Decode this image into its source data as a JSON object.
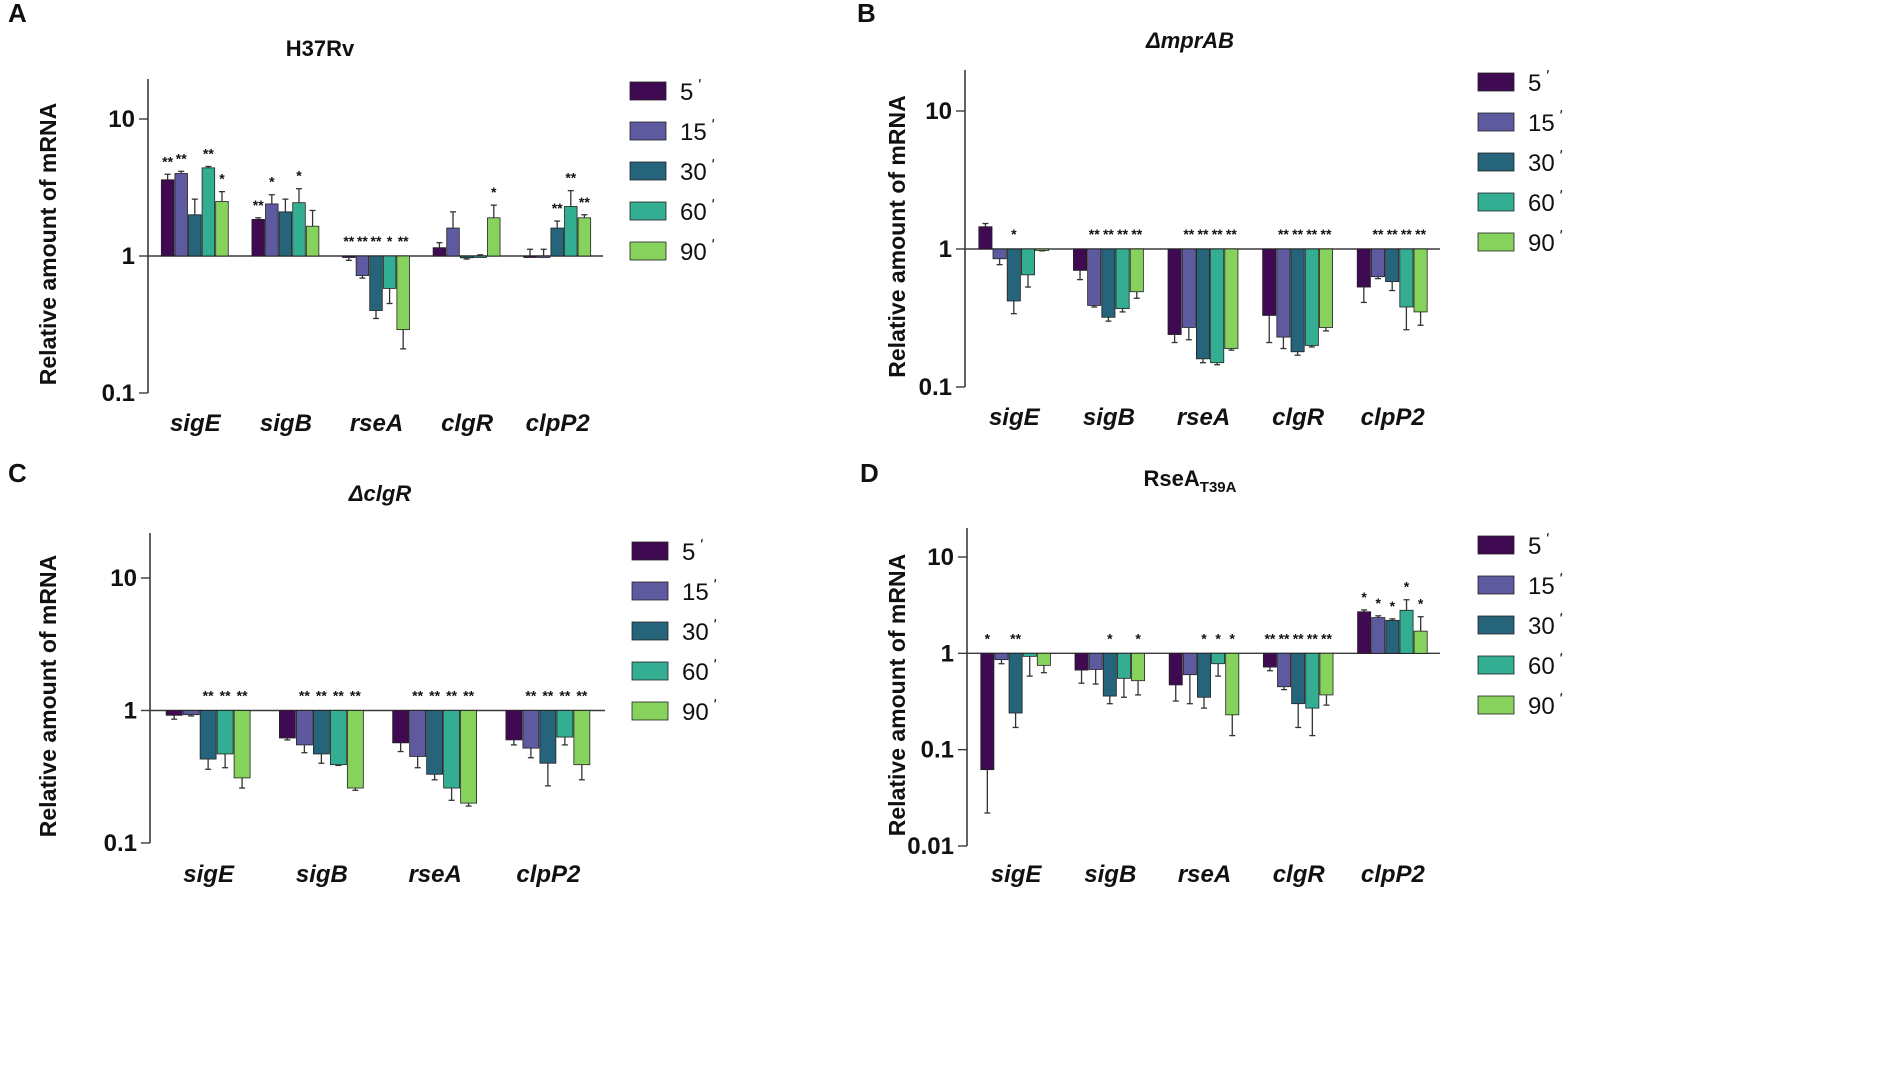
{
  "legend": {
    "items": [
      {
        "label": "5",
        "color": "#3f0a52"
      },
      {
        "label": "15",
        "color": "#5e5a9f"
      },
      {
        "label": "30",
        "color": "#25647a"
      },
      {
        "label": "60",
        "color": "#33ae92"
      },
      {
        "label": "90",
        "color": "#86d25d"
      }
    ],
    "prime": "ʹ"
  },
  "ylabel": "Relative amount of mRNA",
  "chart_data": [
    {
      "panel": "A",
      "type": "bar",
      "scale": "log",
      "title": "H37Rv",
      "title_style": "normal",
      "ylabel": "Relative amount of mRNA",
      "ylim": [
        0.1,
        20
      ],
      "yticks": [
        0.1,
        1,
        10
      ],
      "ytick_labels": [
        "0.1",
        "1",
        "10"
      ],
      "baseline": 1,
      "categories": [
        "sigE",
        "sigB",
        "rseA",
        "clgR",
        "clpP2"
      ],
      "series": [
        {
          "name": "5ʹ",
          "values": [
            3.6,
            1.85,
            0.98,
            1.15,
            1.0
          ],
          "errors": [
            0.35,
            0.05,
            0.05,
            0.1,
            0.12
          ],
          "sig": [
            "**",
            "**",
            "**",
            "",
            ""
          ]
        },
        {
          "name": "15ʹ",
          "values": [
            4.0,
            2.4,
            0.72,
            1.6,
            1.0
          ],
          "errors": [
            0.15,
            0.4,
            0.03,
            0.5,
            0.12
          ],
          "sig": [
            "**",
            "*",
            "**",
            "",
            ""
          ]
        },
        {
          "name": "30ʹ",
          "values": [
            2.0,
            2.1,
            0.4,
            0.97,
            1.6
          ],
          "errors": [
            0.6,
            0.5,
            0.05,
            0.02,
            0.2
          ],
          "sig": [
            "",
            "",
            "**",
            "",
            "**"
          ]
        },
        {
          "name": "60ʹ",
          "values": [
            4.4,
            2.45,
            0.58,
            1.0,
            2.3
          ],
          "errors": [
            0.1,
            0.65,
            0.13,
            0.02,
            0.7
          ],
          "sig": [
            "**",
            "*",
            "*",
            "",
            "**"
          ]
        },
        {
          "name": "90ʹ",
          "values": [
            2.5,
            1.65,
            0.29,
            1.9,
            1.9
          ],
          "errors": [
            0.45,
            0.5,
            0.08,
            0.45,
            0.1
          ],
          "sig": [
            "*",
            "",
            "**",
            "*",
            "**"
          ]
        }
      ]
    },
    {
      "panel": "B",
      "type": "bar",
      "scale": "log",
      "title": "ΔmprAB",
      "title_style": "italic",
      "ylabel": "Relative amount of mRNA",
      "ylim": [
        0.1,
        20
      ],
      "yticks": [
        0.1,
        1,
        10
      ],
      "ytick_labels": [
        "0.1",
        "1",
        "10"
      ],
      "baseline": 1,
      "categories": [
        "sigE",
        "sigB",
        "rseA",
        "clgR",
        "clpP2"
      ],
      "series": [
        {
          "name": "5ʹ",
          "values": [
            1.45,
            0.7,
            0.24,
            0.33,
            0.53
          ],
          "errors": [
            0.08,
            0.1,
            0.03,
            0.12,
            0.12
          ],
          "sig": [
            "",
            "",
            "",
            "",
            ""
          ]
        },
        {
          "name": "15ʹ",
          "values": [
            0.85,
            0.39,
            0.27,
            0.23,
            0.63
          ],
          "errors": [
            0.08,
            0.01,
            0.05,
            0.04,
            0.02
          ],
          "sig": [
            "",
            "**",
            "**",
            "**",
            "**"
          ]
        },
        {
          "name": "30ʹ",
          "values": [
            0.42,
            0.32,
            0.16,
            0.18,
            0.58
          ],
          "errors": [
            0.08,
            0.02,
            0.01,
            0.01,
            0.08
          ],
          "sig": [
            "*",
            "**",
            "**",
            "**",
            "**"
          ]
        },
        {
          "name": "60ʹ",
          "values": [
            0.65,
            0.37,
            0.15,
            0.2,
            0.38
          ],
          "errors": [
            0.12,
            0.02,
            0.005,
            0.005,
            0.12
          ],
          "sig": [
            "",
            "**",
            "**",
            "**",
            "**"
          ]
        },
        {
          "name": "90ʹ",
          "values": [
            0.98,
            0.49,
            0.19,
            0.27,
            0.35
          ],
          "errors": [
            0.01,
            0.05,
            0.005,
            0.015,
            0.07
          ],
          "sig": [
            "",
            "**",
            "**",
            "**",
            "**"
          ]
        }
      ]
    },
    {
      "panel": "C",
      "type": "bar",
      "scale": "log",
      "title": "ΔclgR",
      "title_style": "italic",
      "ylabel": "Relative amount of mRNA",
      "ylim": [
        0.1,
        20
      ],
      "yticks": [
        0.1,
        1,
        10
      ],
      "ytick_labels": [
        "0.1",
        "1",
        "10"
      ],
      "baseline": 1,
      "categories": [
        "sigE",
        "sigB",
        "rseA",
        "clpP2"
      ],
      "series": [
        {
          "name": "5ʹ",
          "values": [
            0.92,
            0.62,
            0.57,
            0.6
          ],
          "errors": [
            0.06,
            0.02,
            0.08,
            0.05
          ],
          "sig": [
            "",
            "",
            "",
            ""
          ]
        },
        {
          "name": "15ʹ",
          "values": [
            0.93,
            0.55,
            0.45,
            0.52
          ],
          "errors": [
            0.02,
            0.07,
            0.08,
            0.08
          ],
          "sig": [
            "",
            "**",
            "**",
            "**"
          ]
        },
        {
          "name": "30ʹ",
          "values": [
            0.43,
            0.47,
            0.33,
            0.4
          ],
          "errors": [
            0.07,
            0.07,
            0.03,
            0.13
          ],
          "sig": [
            "**",
            "**",
            "**",
            "**"
          ]
        },
        {
          "name": "60ʹ",
          "values": [
            0.47,
            0.39,
            0.26,
            0.63
          ],
          "errors": [
            0.1,
            0.005,
            0.05,
            0.08
          ],
          "sig": [
            "**",
            "**",
            "**",
            "**"
          ]
        },
        {
          "name": "90ʹ",
          "values": [
            0.31,
            0.26,
            0.2,
            0.39
          ],
          "errors": [
            0.05,
            0.01,
            0.01,
            0.09
          ],
          "sig": [
            "**",
            "**",
            "**",
            "**"
          ]
        }
      ]
    },
    {
      "panel": "D",
      "type": "bar",
      "scale": "log",
      "title": "RseA",
      "title_sub": "T39A",
      "title_style": "normal",
      "ylabel": "Relative amount of mRNA",
      "ylim": [
        0.01,
        20
      ],
      "yticks": [
        0.01,
        0.1,
        1,
        10
      ],
      "ytick_labels": [
        "0.01",
        "0.1",
        "1",
        "10"
      ],
      "baseline": 1,
      "categories": [
        "sigE",
        "sigB",
        "rseA",
        "clgR",
        "clpP2"
      ],
      "series": [
        {
          "name": "5ʹ",
          "values": [
            0.062,
            0.67,
            0.47,
            0.72,
            2.7
          ],
          "errors": [
            0.04,
            0.18,
            0.15,
            0.06,
            0.12
          ],
          "sig": [
            "*",
            "",
            "",
            "**",
            "*"
          ]
        },
        {
          "name": "15ʹ",
          "values": [
            0.86,
            0.68,
            0.6,
            0.45,
            2.35
          ],
          "errors": [
            0.08,
            0.2,
            0.3,
            0.03,
            0.1
          ],
          "sig": [
            "",
            "",
            "",
            "**",
            "*"
          ]
        },
        {
          "name": "30ʹ",
          "values": [
            0.24,
            0.36,
            0.35,
            0.3,
            2.2
          ],
          "errors": [
            0.07,
            0.06,
            0.08,
            0.13,
            0.08
          ],
          "sig": [
            "**",
            "*",
            "*",
            "**",
            "*"
          ]
        },
        {
          "name": "60ʹ",
          "values": [
            0.93,
            0.55,
            0.78,
            0.27,
            2.8
          ],
          "errors": [
            0.35,
            0.2,
            0.2,
            0.13,
            0.8
          ],
          "sig": [
            "",
            "",
            "*",
            "**",
            "*"
          ]
        },
        {
          "name": "90ʹ",
          "values": [
            0.75,
            0.52,
            0.23,
            0.37,
            1.7
          ],
          "errors": [
            0.12,
            0.15,
            0.09,
            0.08,
            0.7
          ],
          "sig": [
            "",
            "*",
            "*",
            "**",
            "*"
          ]
        }
      ]
    }
  ]
}
